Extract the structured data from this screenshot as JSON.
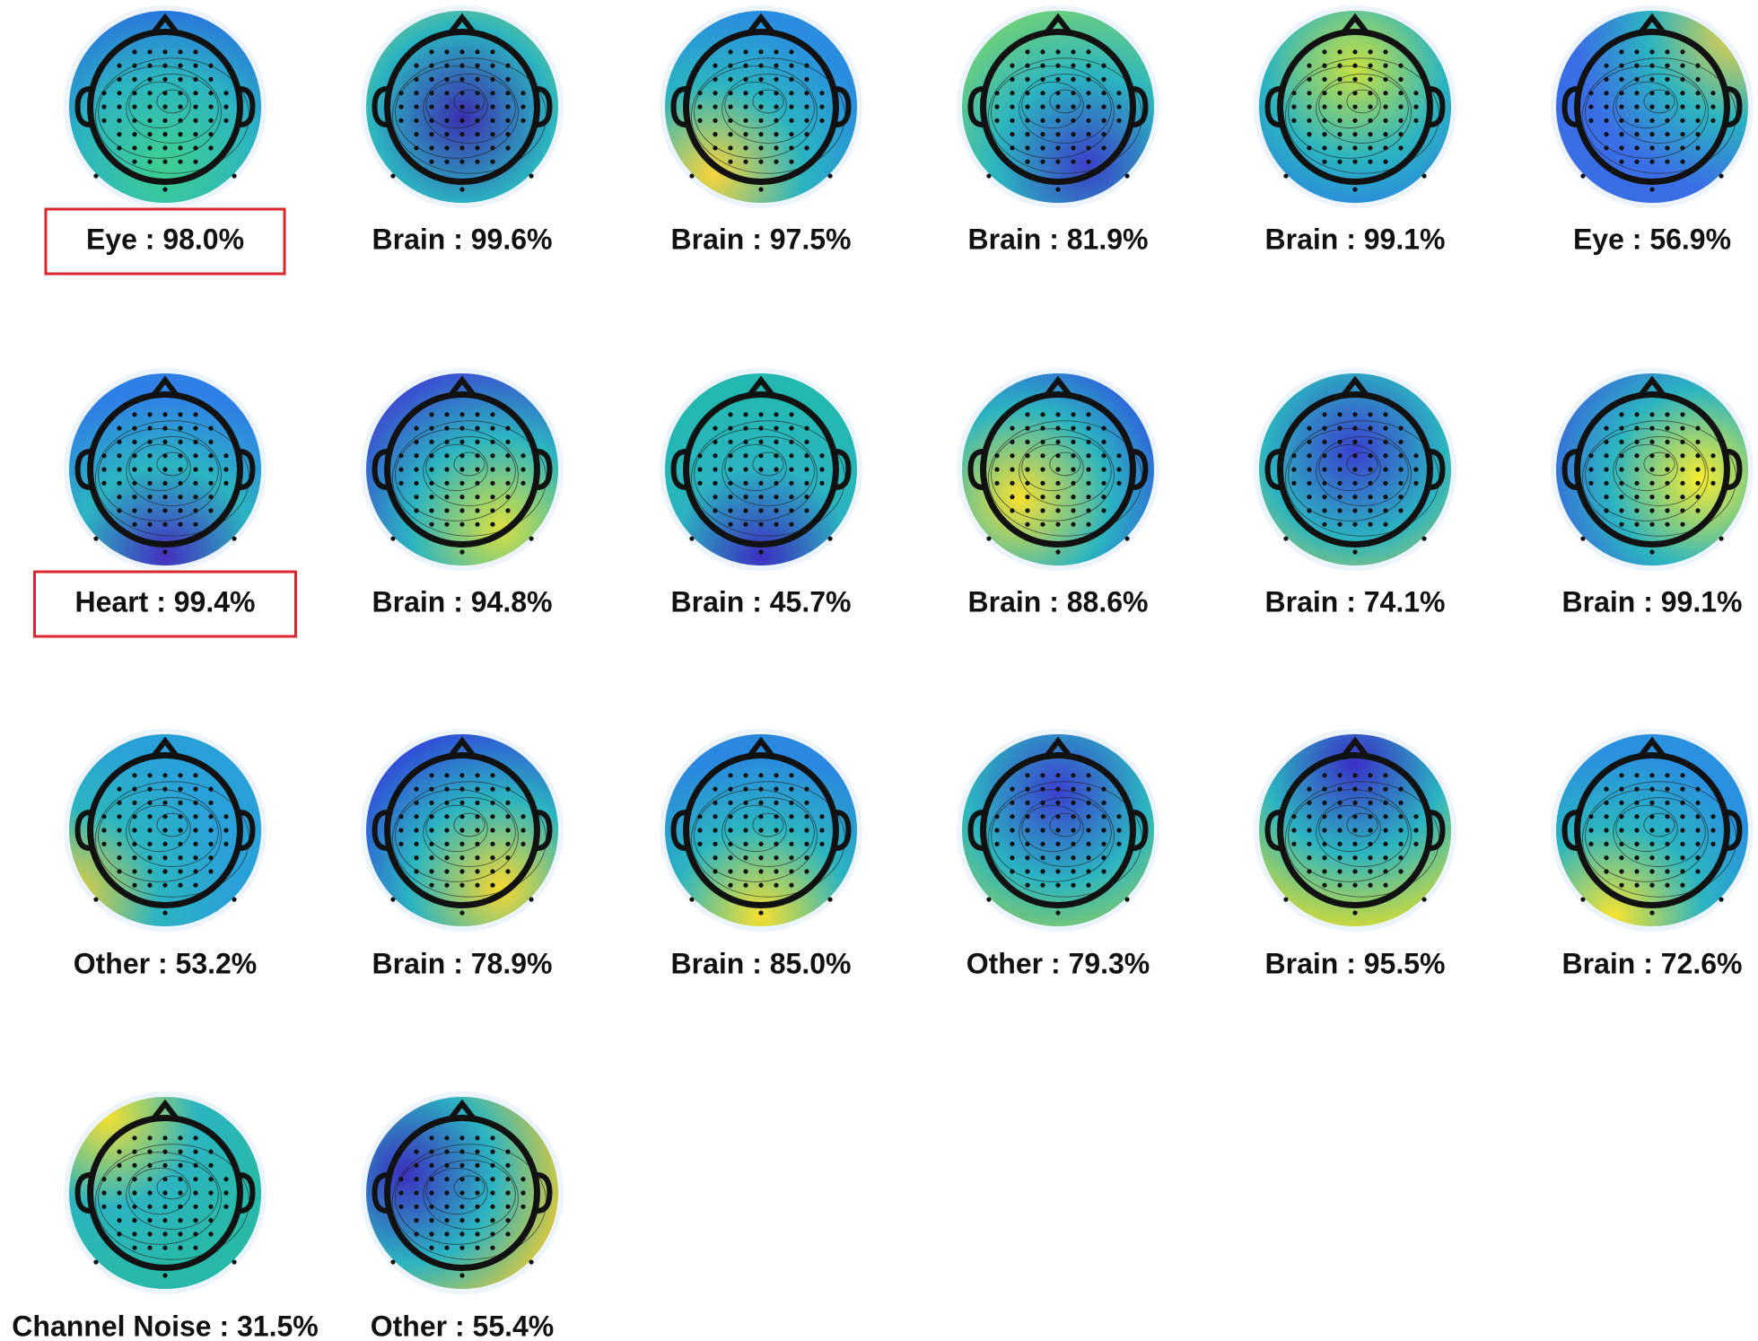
{
  "components": [
    {
      "label": "Eye : 98.0%",
      "highlighted": true
    },
    {
      "label": "Brain : 99.6%",
      "highlighted": false
    },
    {
      "label": "Brain : 97.5%",
      "highlighted": false
    },
    {
      "label": "Brain : 81.9%",
      "highlighted": false
    },
    {
      "label": "Brain : 99.1%",
      "highlighted": false
    },
    {
      "label": "Eye : 56.9%",
      "highlighted": false
    },
    {
      "label": "Heart : 99.4%",
      "highlighted": true
    },
    {
      "label": "Brain : 94.8%",
      "highlighted": false
    },
    {
      "label": "Brain : 45.7%",
      "highlighted": false
    },
    {
      "label": "Brain : 88.6%",
      "highlighted": false
    },
    {
      "label": "Brain : 74.1%",
      "highlighted": false
    },
    {
      "label": "Brain : 99.1%",
      "highlighted": false
    },
    {
      "label": "Other : 53.2%",
      "highlighted": false
    },
    {
      "label": "Brain : 78.9%",
      "highlighted": false
    },
    {
      "label": "Brain : 85.0%",
      "highlighted": false
    },
    {
      "label": "Other : 79.3%",
      "highlighted": false
    },
    {
      "label": "Brain : 95.5%",
      "highlighted": false
    },
    {
      "label": "Brain : 72.6%",
      "highlighted": false
    },
    {
      "label": "Channel Noise : 31.5%",
      "highlighted": false
    },
    {
      "label": "Other : 55.4%",
      "highlighted": false
    }
  ]
}
